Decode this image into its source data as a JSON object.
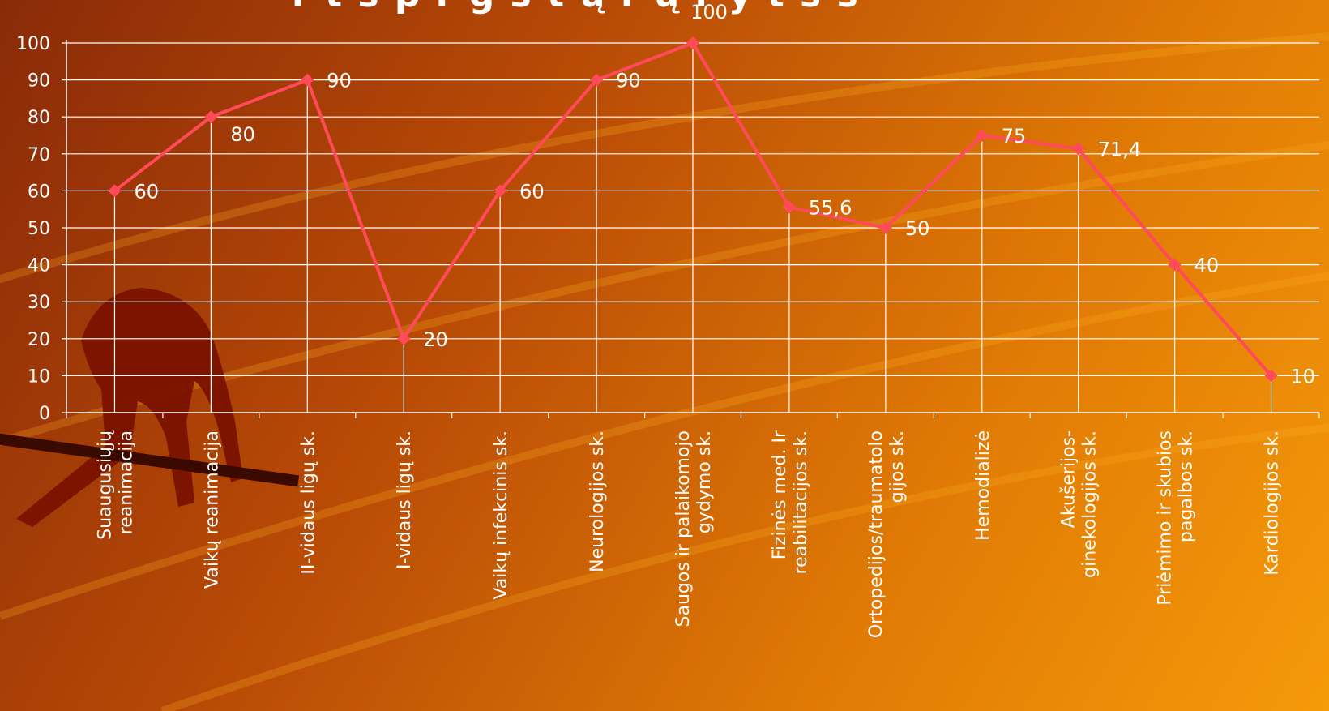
{
  "chart_data": {
    "type": "line",
    "title": "",
    "xlabel": "",
    "ylabel": "",
    "ylim": [
      0,
      100
    ],
    "yticks": [
      0,
      10,
      20,
      30,
      40,
      50,
      60,
      70,
      80,
      90,
      100
    ],
    "grid": true,
    "legend": "none",
    "line_color": "#ff4a5a",
    "categories": [
      [
        "Suaugusiųjų",
        "reanimacija"
      ],
      [
        "Vaikų reanimacija"
      ],
      [
        "II-vidaus ligų sk."
      ],
      [
        "I-vidaus ligų sk."
      ],
      [
        "Vaikų infekcinis sk."
      ],
      [
        "Neurologijos sk."
      ],
      [
        "Saugos ir palaikomojo",
        "gydymo sk."
      ],
      [
        "Fizinės med. Ir",
        "reabilitacijos sk."
      ],
      [
        "Ortopedijos/traumatolo",
        "gijos sk."
      ],
      [
        "Hemodializė"
      ],
      [
        "Akušerijos-",
        "ginekologijos sk."
      ],
      [
        "Priėmimo ir skubios",
        "pagalbos sk."
      ],
      [
        "Kardiologijos sk."
      ]
    ],
    "values": [
      60,
      80,
      90,
      20,
      60,
      90,
      100,
      55.6,
      50,
      75,
      71.4,
      40,
      10
    ],
    "data_labels": [
      "60",
      "80",
      "90",
      "20",
      "60",
      "90",
      "100",
      "55,6",
      "50",
      "75",
      "71,4",
      "40",
      "10"
    ]
  },
  "title_fragment": "r       t  s  p  r  g  s   t   ų   r  ų   r  y  t  s  s"
}
